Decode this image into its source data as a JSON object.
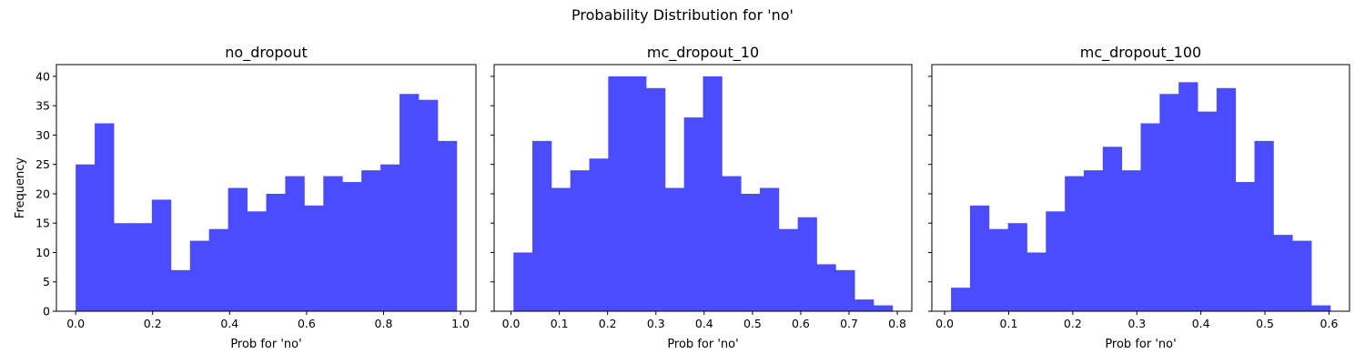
{
  "figure": {
    "title": "Probability Distribution for 'no'"
  },
  "chart_data": [
    {
      "type": "bar",
      "title": "no_dropout",
      "xlabel": "Prob for 'no'",
      "ylabel": "Frequency",
      "bin_range": [
        0.0,
        0.99
      ],
      "values": [
        25,
        32,
        15,
        15,
        19,
        7,
        12,
        14,
        21,
        17,
        20,
        23,
        18,
        23,
        22,
        24,
        25,
        37,
        36,
        29
      ],
      "xlim": [
        -0.05,
        1.04
      ],
      "xticks": [
        0.0,
        0.2,
        0.4,
        0.6,
        0.8,
        1.0
      ],
      "xtick_labels": [
        "0.0",
        "0.2",
        "0.4",
        "0.6",
        "0.8",
        "1.0"
      ],
      "ylim": [
        0,
        42
      ],
      "yticks": [
        0,
        5,
        10,
        15,
        20,
        25,
        30,
        35,
        40
      ],
      "color": "#4b4bff"
    },
    {
      "type": "bar",
      "title": "mc_dropout_10",
      "xlabel": "Prob for 'no'",
      "ylabel": "",
      "bin_range": [
        0.005,
        0.79
      ],
      "values": [
        10,
        29,
        21,
        24,
        26,
        40,
        40,
        38,
        21,
        33,
        40,
        23,
        20,
        21,
        14,
        16,
        8,
        7,
        2,
        1
      ],
      "xlim": [
        -0.035,
        0.83
      ],
      "xticks": [
        0.0,
        0.1,
        0.2,
        0.3,
        0.4,
        0.5,
        0.6,
        0.7,
        0.8
      ],
      "xtick_labels": [
        "0.0",
        "0.1",
        "0.2",
        "0.3",
        "0.4",
        "0.5",
        "0.6",
        "0.7",
        "0.8"
      ],
      "ylim": [
        0,
        42
      ],
      "yticks": [
        0,
        5,
        10,
        15,
        20,
        25,
        30,
        35,
        40
      ],
      "color": "#4b4bff"
    },
    {
      "type": "bar",
      "title": "mc_dropout_100",
      "xlabel": "Prob for 'no'",
      "ylabel": "",
      "bin_range": [
        0.01,
        0.602
      ],
      "values": [
        4,
        18,
        14,
        15,
        10,
        17,
        23,
        24,
        28,
        24,
        32,
        37,
        39,
        34,
        38,
        22,
        29,
        13,
        12,
        1
      ],
      "xlim": [
        -0.02,
        0.632
      ],
      "xticks": [
        0.0,
        0.1,
        0.2,
        0.3,
        0.4,
        0.5,
        0.6
      ],
      "xtick_labels": [
        "0.0",
        "0.1",
        "0.2",
        "0.3",
        "0.4",
        "0.5",
        "0.6"
      ],
      "ylim": [
        0,
        42
      ],
      "yticks": [
        0,
        5,
        10,
        15,
        20,
        25,
        30,
        35,
        40
      ],
      "color": "#4b4bff"
    }
  ]
}
